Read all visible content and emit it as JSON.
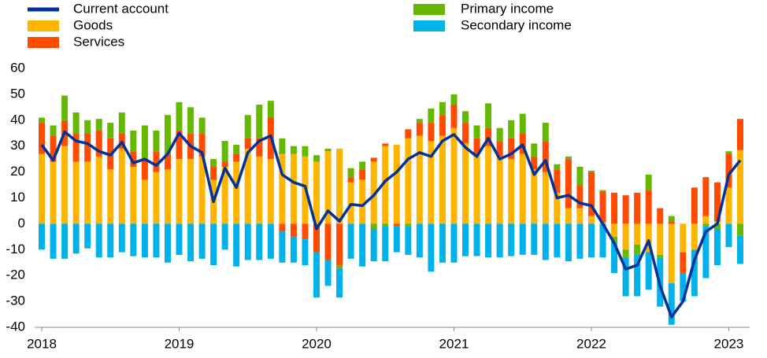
{
  "chart_data": {
    "type": "bar",
    "categories": [
      "2018",
      null,
      null,
      null,
      null,
      null,
      null,
      null,
      null,
      null,
      null,
      null,
      "2019",
      null,
      null,
      null,
      null,
      null,
      null,
      null,
      null,
      null,
      null,
      null,
      "2020",
      null,
      null,
      null,
      null,
      null,
      null,
      null,
      null,
      null,
      null,
      null,
      "2021",
      null,
      null,
      null,
      null,
      null,
      null,
      null,
      null,
      null,
      null,
      null,
      "2022",
      null,
      null,
      null,
      null,
      null,
      null,
      null,
      null,
      null,
      null,
      null,
      "2023",
      null
    ],
    "series": [
      {
        "name": "Current account",
        "type": "line",
        "color": "#003299",
        "values": [
          30.5,
          24.5,
          35.5,
          32,
          31,
          28,
          26.5,
          31.5,
          23.5,
          25,
          22.5,
          27,
          35,
          30,
          27.5,
          8.5,
          21.5,
          14,
          27.5,
          32,
          34,
          19,
          16,
          14.5,
          -2,
          5,
          1,
          7.5,
          7,
          11,
          16.5,
          20,
          25,
          27.5,
          26,
          32,
          34.5,
          29.5,
          26,
          33,
          25,
          27,
          30.5,
          19,
          24.5,
          10,
          11,
          8,
          7,
          0,
          -7.5,
          -17.5,
          -16,
          -6.5,
          -24,
          -36,
          -30,
          -14,
          -3,
          0,
          19,
          24.5
        ]
      },
      {
        "name": "Goods",
        "type": "bar",
        "color": "#ffb400",
        "values": [
          27,
          24,
          30,
          24,
          24,
          26,
          21,
          29,
          22,
          17,
          20,
          21,
          25,
          25,
          26,
          17,
          22,
          24,
          29,
          26,
          25,
          27,
          27,
          26,
          24,
          28,
          29,
          16,
          17,
          24,
          30,
          30.5,
          33,
          34,
          32,
          34,
          37,
          31,
          27,
          30,
          26,
          25,
          27,
          21,
          20,
          12,
          6,
          6,
          3,
          0.5,
          -5,
          -10,
          -8,
          -11,
          -12,
          -23,
          -11,
          -10,
          3,
          1,
          14,
          28.5
        ]
      },
      {
        "name": "Services",
        "type": "bar",
        "color": "#ff4b00",
        "values": [
          12,
          10,
          10,
          11,
          11,
          10,
          12,
          6,
          6,
          8,
          8,
          6,
          11,
          10,
          9,
          5,
          2,
          3,
          4,
          7,
          16,
          -3,
          -5,
          -6,
          -11,
          -14,
          -16,
          2,
          4,
          1.5,
          1,
          -1,
          3.5,
          5,
          7,
          8,
          9,
          8,
          6,
          7,
          6,
          8,
          8,
          5,
          12,
          9,
          19,
          9,
          17,
          12,
          12,
          11,
          12,
          13,
          6,
          1,
          -8,
          14,
          15,
          15,
          13,
          12
        ]
      },
      {
        "name": "Primary income",
        "type": "bar",
        "color": "#65b800",
        "values": [
          2,
          4,
          9.5,
          8,
          5,
          4.5,
          6,
          8,
          8,
          13,
          8,
          15,
          11,
          10,
          6,
          3,
          8,
          3.5,
          9,
          13,
          6.5,
          6,
          3,
          4,
          2.5,
          1,
          -1.5,
          3.5,
          3,
          -2,
          -1,
          0,
          -1,
          1.5,
          5.5,
          5,
          4,
          4.5,
          5,
          9.5,
          5,
          7,
          7.5,
          5,
          7,
          2,
          1,
          7,
          0.5,
          0.5,
          -2,
          -3,
          -4,
          6,
          -1,
          2,
          0,
          0,
          -1,
          -2,
          1,
          -4.5
        ]
      },
      {
        "name": "Secondary income",
        "type": "bar",
        "color": "#00b1ea",
        "values": [
          -10,
          -13.5,
          -13.5,
          -11.5,
          -9.5,
          -13,
          -13,
          -11,
          -12.5,
          -13,
          -13,
          -15,
          -12,
          -14.5,
          -13.5,
          -16,
          -10,
          -16.5,
          -14,
          -14,
          -13.5,
          -12,
          -10,
          -10,
          -17.5,
          -10,
          -11,
          -13.5,
          -16.5,
          -12.5,
          -13.5,
          -10,
          -11,
          -13,
          -18.5,
          -15,
          -15,
          -12.5,
          -12.5,
          -13,
          -13,
          -12.5,
          -12,
          -12,
          -14,
          -13,
          -14.5,
          -13.5,
          -13,
          -13,
          -12,
          -15,
          -16,
          -14.5,
          -19,
          -16,
          -11,
          -18,
          -20,
          -14,
          -9,
          -11
        ]
      }
    ],
    "ylim": [
      -40,
      60
    ],
    "yticks": [
      -40,
      -30,
      -20,
      -10,
      0,
      10,
      20,
      30,
      40,
      50,
      60
    ],
    "grid": false
  }
}
